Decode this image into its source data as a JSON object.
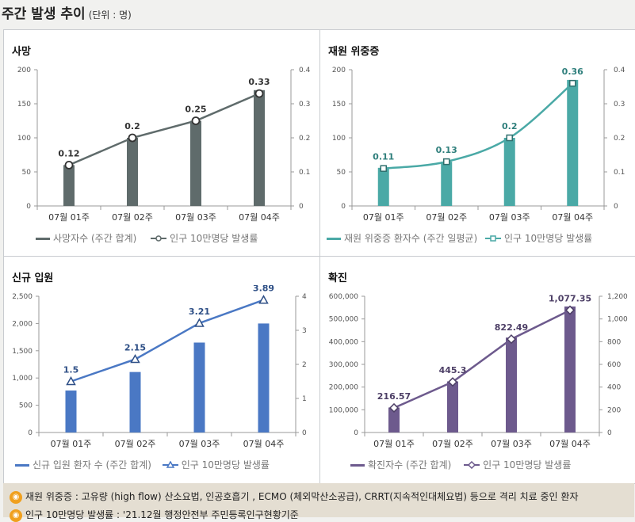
{
  "header": {
    "title": "주간 발생 추이",
    "unit": "(단위 : 명)"
  },
  "colors": {
    "death": "#5f6b6b",
    "severe": "#4aa9a6",
    "admission": "#4a78c4",
    "confirmed": "#6d5a8d"
  },
  "chart_data": [
    {
      "type": "bar",
      "title": "사망",
      "categories": [
        "07월 01주",
        "07월 02주",
        "07월 03주",
        "07월 04주"
      ],
      "series": [
        {
          "name": "사망자수 (주간 합계)",
          "type": "bar",
          "values": [
            60,
            100,
            125,
            170
          ],
          "axis": "left"
        },
        {
          "name": "인구 10만명당 발생률",
          "type": "line",
          "values": [
            0.12,
            0.2,
            0.25,
            0.33
          ],
          "axis": "right",
          "marker": "circle"
        }
      ],
      "ylim": [
        0,
        200
      ],
      "yticks": [
        0,
        50,
        100,
        150,
        200
      ],
      "ytick_labels": [
        "0",
        "50",
        "100",
        "150",
        "200"
      ],
      "y2lim": [
        0,
        0.4
      ],
      "y2ticks": [
        0,
        0.1,
        0.2,
        0.3,
        0.4
      ],
      "y2tick_labels": [
        "0",
        "0.1",
        "0.2",
        "0.3",
        "0.4"
      ],
      "data_labels": [
        "0.12",
        "0.2",
        "0.25",
        "0.33"
      ]
    },
    {
      "type": "bar",
      "title": "재원 위중증",
      "categories": [
        "07월 01주",
        "07월 02주",
        "07월 03주",
        "07월 04주"
      ],
      "series": [
        {
          "name": "재원 위중증 환자수 (주간 일평균)",
          "type": "bar",
          "values": [
            56,
            65,
            100,
            185
          ],
          "axis": "left"
        },
        {
          "name": "인구 10만명당 발생률",
          "type": "line",
          "values": [
            0.11,
            0.13,
            0.2,
            0.36
          ],
          "axis": "right",
          "marker": "square",
          "smooth": true
        }
      ],
      "ylim": [
        0,
        200
      ],
      "yticks": [
        0,
        50,
        100,
        150,
        200
      ],
      "ytick_labels": [
        "0",
        "50",
        "100",
        "150",
        "200"
      ],
      "y2lim": [
        0,
        0.4
      ],
      "y2ticks": [
        0,
        0.1,
        0.2,
        0.3,
        0.4
      ],
      "y2tick_labels": [
        "0",
        "0.1",
        "0.2",
        "0.3",
        "0.4"
      ],
      "data_labels": [
        "0.11",
        "0.13",
        "0.2",
        "0.36"
      ]
    },
    {
      "type": "bar",
      "title": "신규 입원",
      "categories": [
        "07월 01주",
        "07월 02주",
        "07월 03주",
        "07월 04주"
      ],
      "series": [
        {
          "name": "신규 입원 환자 수 (주간 합계)",
          "type": "bar",
          "values": [
            770,
            1110,
            1650,
            2000
          ],
          "axis": "left"
        },
        {
          "name": "인구 10만명당 발생률",
          "type": "line",
          "values": [
            1.5,
            2.15,
            3.21,
            3.89
          ],
          "axis": "right",
          "marker": "triangle"
        }
      ],
      "ylim": [
        0,
        2500
      ],
      "yticks": [
        0,
        500,
        1000,
        1500,
        2000,
        2500
      ],
      "ytick_labels": [
        "0",
        "500",
        "1,000",
        "1,500",
        "2,000",
        "2,500"
      ],
      "y2lim": [
        0,
        4
      ],
      "y2ticks": [
        0,
        1,
        2,
        3,
        4
      ],
      "y2tick_labels": [
        "0",
        "1",
        "2",
        "3",
        "4"
      ],
      "data_labels": [
        "1.5",
        "2.15",
        "3.21",
        "3.89"
      ]
    },
    {
      "type": "bar",
      "title": "확진",
      "categories": [
        "07월 01주",
        "07월 02주",
        "07월 03주",
        "07월 04주"
      ],
      "series": [
        {
          "name": "확진자수 (주간 합계)",
          "type": "bar",
          "values": [
            110000,
            225000,
            418000,
            555000
          ],
          "axis": "left"
        },
        {
          "name": "인구 10만명당 발생률",
          "type": "line",
          "values": [
            216.57,
            445.3,
            822.49,
            1077.35
          ],
          "axis": "right",
          "marker": "diamond"
        }
      ],
      "ylim": [
        0,
        600000
      ],
      "yticks": [
        0,
        100000,
        200000,
        300000,
        400000,
        500000,
        600000
      ],
      "ytick_labels": [
        "0",
        "100,000",
        "200,000",
        "300,000",
        "400,000",
        "500,000",
        "600,000"
      ],
      "y2lim": [
        0,
        1200
      ],
      "y2ticks": [
        0,
        200,
        400,
        600,
        800,
        1000,
        1200
      ],
      "y2tick_labels": [
        "0",
        "200",
        "400",
        "600",
        "800",
        "1,000",
        "1,200"
      ],
      "data_labels": [
        "216.57",
        "445.3",
        "822.49",
        "1,077.35"
      ]
    }
  ],
  "footnotes": [
    {
      "icon": "◉",
      "text": "재원 위중증 : 고유량 (high flow) 산소요법, 인공호흡기 , ECMO (체외막산소공급), CRRT(지속적인대체요법) 등으로 격리 치료 중인 환자"
    },
    {
      "icon": "◉",
      "text": "인구 10만명당 발생률 : '21.12월 행정안전부 주민등록인구현황기준"
    }
  ]
}
